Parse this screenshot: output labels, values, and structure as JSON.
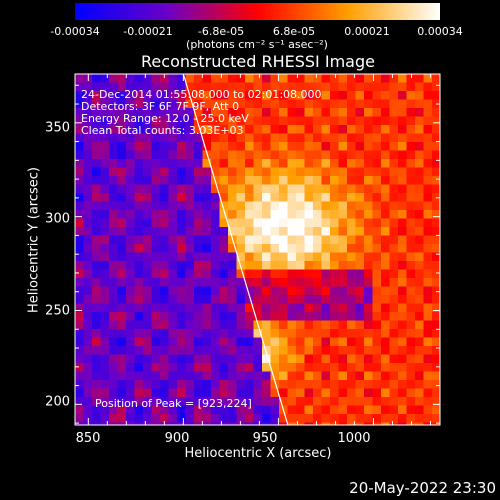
{
  "colorbar": {
    "ticks": [
      "-0.00034",
      "-0.00021",
      "-6.8e-05",
      "6.8e-05",
      "0.00021",
      "0.00034"
    ],
    "range": [
      -0.00034,
      0.00034
    ],
    "units": "(photons cm⁻² s⁻¹ asec⁻²)"
  },
  "chart_data": {
    "type": "heatmap",
    "title": "Reconstructed RHESSI Image",
    "xlabel": "Heliocentric X (arcsec)",
    "ylabel": "Heliocentric Y (arcsec)",
    "xlim": [
      843,
      1035
    ],
    "ylim": [
      189,
      376
    ],
    "xticks": [
      "850",
      "900",
      "950",
      "1000"
    ],
    "yticks": [
      "200",
      "250",
      "300",
      "350"
    ],
    "peak": [
      923,
      224
    ],
    "limb_line": [
      [
        900,
        376
      ],
      [
        955,
        189
      ]
    ],
    "colormap": [
      "#0000ff",
      "#6a00c8",
      "#ff0000",
      "#ffa000",
      "#ffffff"
    ]
  },
  "annotations": {
    "time": "24-Dec-2014 01:55:08.000 to 02:01:08.000",
    "detectors": "Detectors: 3F 6F 7F 9F, Att 0",
    "energy": "Energy Range: 12.0 - 25.0 keV",
    "clean": "Clean    Total counts: 3.03E+03",
    "peak": "Position of Peak = [923,224]"
  },
  "datestamp": "20-May-2022 23:30"
}
